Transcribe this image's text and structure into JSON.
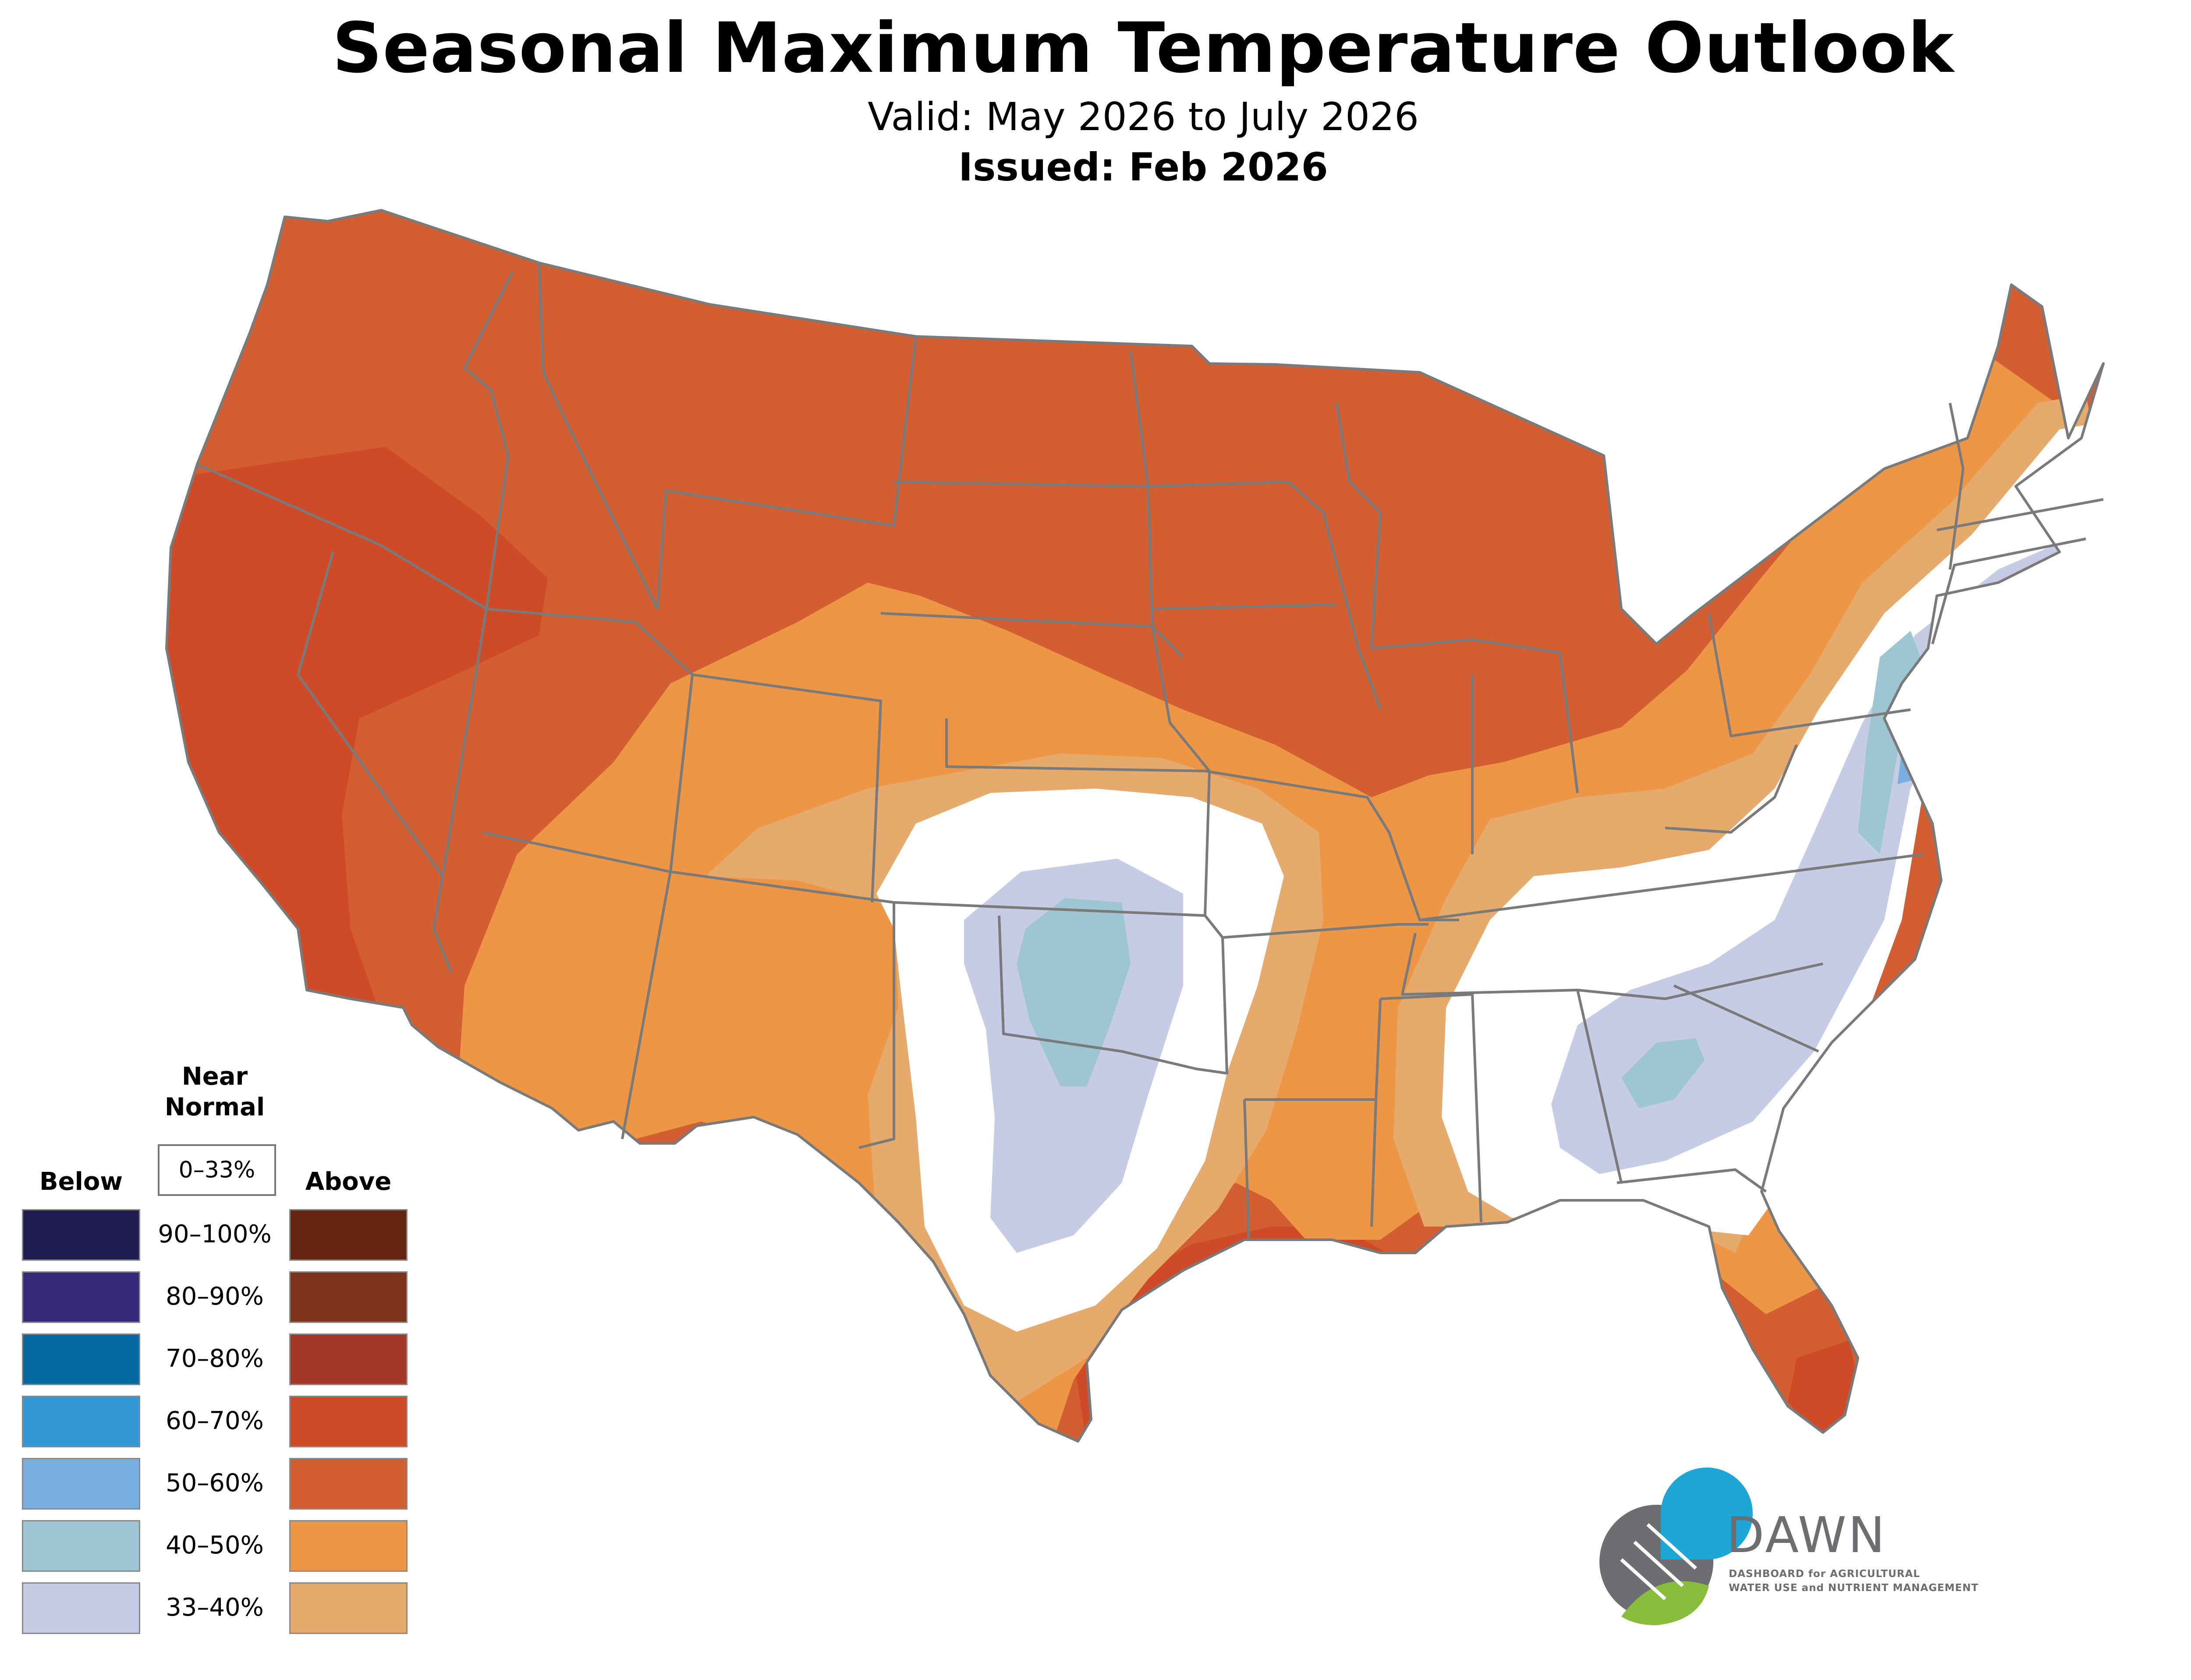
{
  "header": {
    "title": "Seasonal Maximum Temperature Outlook",
    "valid": "Valid: May 2026 to July 2026",
    "issued": "Issued: Feb 2026"
  },
  "legend": {
    "below_title": "Below",
    "near_normal_title_line1": "Near",
    "near_normal_title_line2": "Normal",
    "near_normal_range": "0–33%",
    "above_title": "Above",
    "ranges": [
      "90–100%",
      "80–90%",
      "70–80%",
      "60–70%",
      "50–60%",
      "40–50%",
      "33–40%"
    ],
    "below_colors": [
      "#211c4f",
      "#352b7a",
      "#05679f",
      "#3399d6",
      "#79aee0",
      "#9dc6d2",
      "#c6cce6"
    ],
    "above_colors": [
      "#652511",
      "#7e321b",
      "#a43828",
      "#cf4a27",
      "#d35e32",
      "#ec9646",
      "#e6ab6c"
    ]
  },
  "logo": {
    "name": "DAWN",
    "line1": "DASHBOARD for AGRICULTURAL",
    "line2": "WATER USE and NUTRIENT MANAGEMENT"
  },
  "map": {
    "region": "Contiguous United States",
    "colors": {
      "a50_60": "#d35e32",
      "a60_70": "#cf4a27",
      "a40_50": "#ec9646",
      "a33_40": "#e6ab6c",
      "near_normal": "#ffffff",
      "b33_40": "#c6cce6",
      "b40_50": "#9dc6d2",
      "b50_60": "#79aee0",
      "borders": "#7a7a7a"
    }
  }
}
